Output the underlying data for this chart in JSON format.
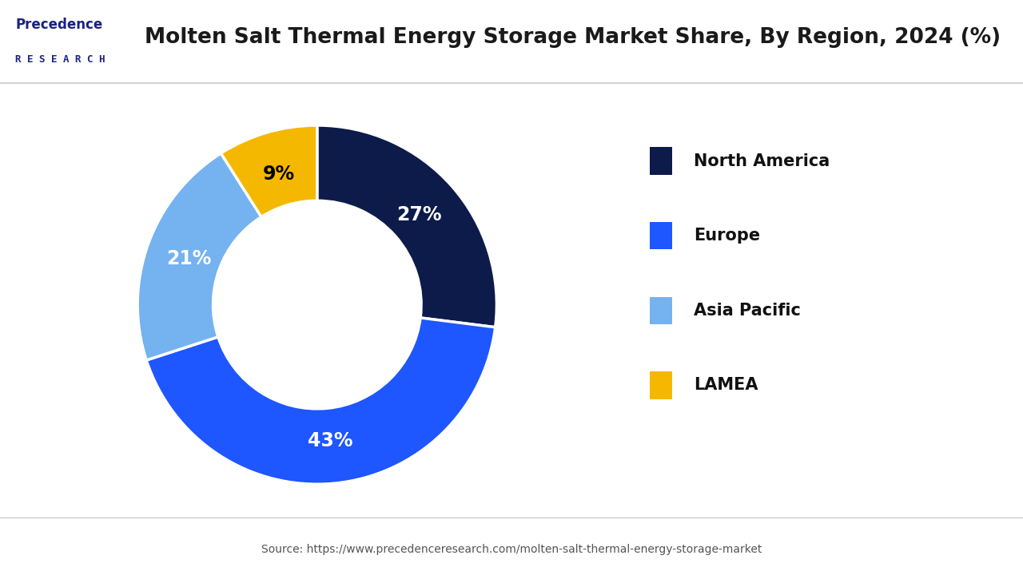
{
  "title": "Molten Salt Thermal Energy Storage Market Share, By Region, 2024 (%)",
  "labels": [
    "North America",
    "Europe",
    "Asia Pacific",
    "LAMEA"
  ],
  "values": [
    27,
    43,
    21,
    9
  ],
  "colors": [
    "#0d1b4b",
    "#1e56ff",
    "#75b2f0",
    "#f5b800"
  ],
  "pct_labels": [
    "27%",
    "43%",
    "21%",
    "9%"
  ],
  "source_text": "Source: https://www.precedenceresearch.com/molten-salt-thermal-energy-storage-market",
  "bg_color": "#ffffff",
  "label_text_colors": [
    "#ffffff",
    "#ffffff",
    "#ffffff",
    "#000000"
  ],
  "donut_hole": 0.55,
  "start_angle": 90,
  "legend_fontsize": 15,
  "title_fontsize": 19,
  "pct_fontsize": 17,
  "logo_text_line1": "Precedence",
  "logo_text_line2": "R E S E A R C H",
  "logo_color": "#1a237e",
  "title_color": "#1a1a1a",
  "source_color": "#555555",
  "border_color": "#cccccc"
}
